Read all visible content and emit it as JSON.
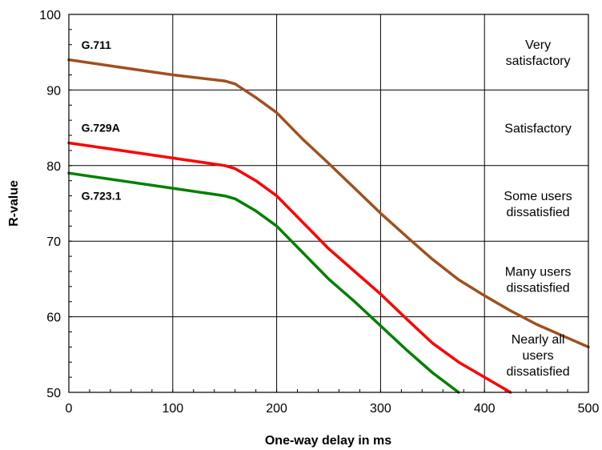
{
  "chart_data": {
    "type": "line",
    "title": "",
    "xlabel": "One-way delay in ms",
    "ylabel": "R-value",
    "xlim": [
      0,
      500
    ],
    "ylim": [
      50,
      100
    ],
    "x_ticks": [
      "0",
      "100",
      "200",
      "300",
      "400",
      "500"
    ],
    "y_ticks": [
      "50",
      "60",
      "70",
      "80",
      "90",
      "100"
    ],
    "grid": true,
    "series": [
      {
        "name": "G.711",
        "color": "#a0501e",
        "points": [
          [
            0,
            94
          ],
          [
            50,
            93
          ],
          [
            100,
            92
          ],
          [
            150,
            91.2
          ],
          [
            160,
            90.8
          ],
          [
            180,
            89
          ],
          [
            200,
            87
          ],
          [
            225,
            83.5
          ],
          [
            250,
            80.3
          ],
          [
            275,
            77
          ],
          [
            300,
            73.7
          ],
          [
            325,
            70.6
          ],
          [
            350,
            67.6
          ],
          [
            375,
            64.9
          ],
          [
            400,
            62.8
          ],
          [
            425,
            60.8
          ],
          [
            450,
            59
          ],
          [
            475,
            57.5
          ],
          [
            500,
            56
          ]
        ]
      },
      {
        "name": "G.729A",
        "color": "#ff0000",
        "points": [
          [
            0,
            83
          ],
          [
            50,
            82
          ],
          [
            100,
            81
          ],
          [
            150,
            80
          ],
          [
            160,
            79.6
          ],
          [
            180,
            78
          ],
          [
            200,
            76
          ],
          [
            225,
            72.5
          ],
          [
            250,
            69
          ],
          [
            275,
            66
          ],
          [
            300,
            63
          ],
          [
            325,
            59.7
          ],
          [
            350,
            56.5
          ],
          [
            375,
            54
          ],
          [
            400,
            52
          ],
          [
            425,
            50
          ]
        ]
      },
      {
        "name": "G.723.1",
        "color": "#008000",
        "points": [
          [
            0,
            79
          ],
          [
            50,
            78
          ],
          [
            100,
            77
          ],
          [
            150,
            76
          ],
          [
            160,
            75.6
          ],
          [
            180,
            74
          ],
          [
            200,
            72
          ],
          [
            225,
            68.5
          ],
          [
            250,
            65
          ],
          [
            275,
            62
          ],
          [
            300,
            58.8
          ],
          [
            325,
            55.6
          ],
          [
            350,
            52.6
          ],
          [
            375,
            50
          ]
        ]
      }
    ],
    "zones": [
      {
        "lines": [
          "Very",
          "satisfactory"
        ],
        "y_center": 95
      },
      {
        "lines": [
          "Satisfactory"
        ],
        "y_center": 85
      },
      {
        "lines": [
          "Some users",
          "dissatisfied"
        ],
        "y_center": 75
      },
      {
        "lines": [
          "Many users",
          "dissatisfied"
        ],
        "y_center": 65
      },
      {
        "lines": [
          "Nearly all",
          "users",
          "dissatisfied"
        ],
        "y_center": 55
      }
    ],
    "series_labels": [
      {
        "text": "G.711",
        "x": 12,
        "y": 96
      },
      {
        "text": "G.729A",
        "x": 12,
        "y": 85
      },
      {
        "text": "G.723.1",
        "x": 12,
        "y": 76
      }
    ]
  }
}
